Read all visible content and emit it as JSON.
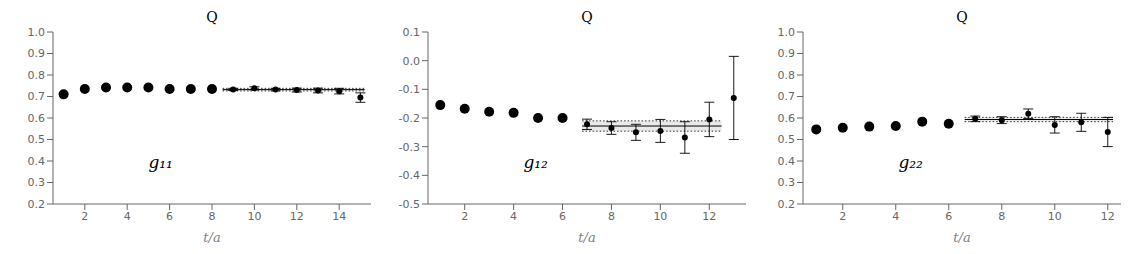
{
  "chart_data": [
    {
      "type": "scatter",
      "title": "Q",
      "x_label": "t/a",
      "annotation": "g₁₁",
      "grid": false,
      "xlim": [
        0.5,
        15.5
      ],
      "xticks": [
        2,
        4,
        6,
        8,
        10,
        12,
        14
      ],
      "ylim": [
        0.2,
        1.0
      ],
      "yticks": [
        0.2,
        0.3,
        0.4,
        0.5,
        0.6,
        0.7,
        0.8,
        0.9,
        {
          "value": 1.0,
          "label": "1.0"
        }
      ],
      "series": [
        {
          "color": "black",
          "marker": "circle",
          "x": [
            1,
            2,
            3,
            4,
            5,
            6,
            7,
            8
          ],
          "values": [
            0.71,
            0.735,
            0.742,
            0.742,
            0.742,
            0.735,
            0.735,
            0.735
          ]
        },
        {
          "color": "black",
          "marker": "circle",
          "x": [
            9,
            10,
            11,
            12,
            13,
            14,
            15
          ],
          "values": [
            0.733,
            0.738,
            0.732,
            0.73,
            0.728,
            0.725,
            0.695
          ],
          "error": [
            0.005,
            0.007,
            0.006,
            0.009,
            0.011,
            0.013,
            0.022
          ]
        }
      ],
      "plateau": {
        "y": 0.732,
        "error": 0.006,
        "x_start": 8.5,
        "x_end": 15.2,
        "color": "lightgray"
      }
    },
    {
      "type": "scatter",
      "title": "Q",
      "x_label": "t/a",
      "annotation": "g₁₂",
      "grid": false,
      "xlim": [
        0.5,
        13.5
      ],
      "xticks": [
        2,
        4,
        6,
        8,
        10,
        12
      ],
      "ylim": [
        -0.5,
        0.1
      ],
      "yticks": [
        -0.5,
        -0.4,
        -0.3,
        -0.2,
        -0.1,
        {
          "value": 0.0,
          "label": "0.0"
        },
        0.1
      ],
      "series": [
        {
          "color": "black",
          "marker": "circle",
          "x": [
            1,
            2,
            3,
            4,
            5,
            6
          ],
          "values": [
            -0.155,
            -0.168,
            -0.178,
            -0.182,
            -0.2,
            -0.2
          ]
        },
        {
          "color": "black",
          "marker": "circle",
          "x": [
            7,
            8,
            9,
            10,
            11,
            12,
            13
          ],
          "values": [
            -0.222,
            -0.235,
            -0.25,
            -0.245,
            -0.268,
            -0.205,
            -0.13
          ],
          "error": [
            0.018,
            0.022,
            0.028,
            0.04,
            0.055,
            0.06,
            0.145
          ]
        }
      ],
      "plateau": {
        "y": -0.228,
        "error": 0.018,
        "x_start": 6.8,
        "x_end": 12.5,
        "color": "lightgray"
      }
    },
    {
      "type": "scatter",
      "title": "Q",
      "x_label": "t/a",
      "annotation": "g₂₂",
      "grid": false,
      "xlim": [
        0.5,
        12.5
      ],
      "xticks": [
        2,
        4,
        6,
        8,
        10,
        12
      ],
      "ylim": [
        0.2,
        1.0
      ],
      "yticks": [
        0.2,
        0.3,
        0.4,
        0.5,
        0.6,
        0.7,
        0.8,
        0.9,
        {
          "value": 1.0,
          "label": "1.0"
        }
      ],
      "series": [
        {
          "color": "black",
          "marker": "circle",
          "x": [
            1,
            2,
            3,
            4,
            5,
            6
          ],
          "values": [
            0.547,
            0.555,
            0.56,
            0.563,
            0.583,
            0.573
          ]
        },
        {
          "color": "black",
          "marker": "circle",
          "x": [
            7,
            8,
            9,
            10,
            11,
            12
          ],
          "values": [
            0.596,
            0.59,
            0.62,
            0.568,
            0.58,
            0.535
          ],
          "error": [
            0.013,
            0.016,
            0.022,
            0.038,
            0.042,
            0.068
          ]
        }
      ],
      "plateau": {
        "y": 0.593,
        "error": 0.01,
        "x_start": 6.6,
        "x_end": 12.2,
        "color": "lightgray"
      }
    }
  ]
}
